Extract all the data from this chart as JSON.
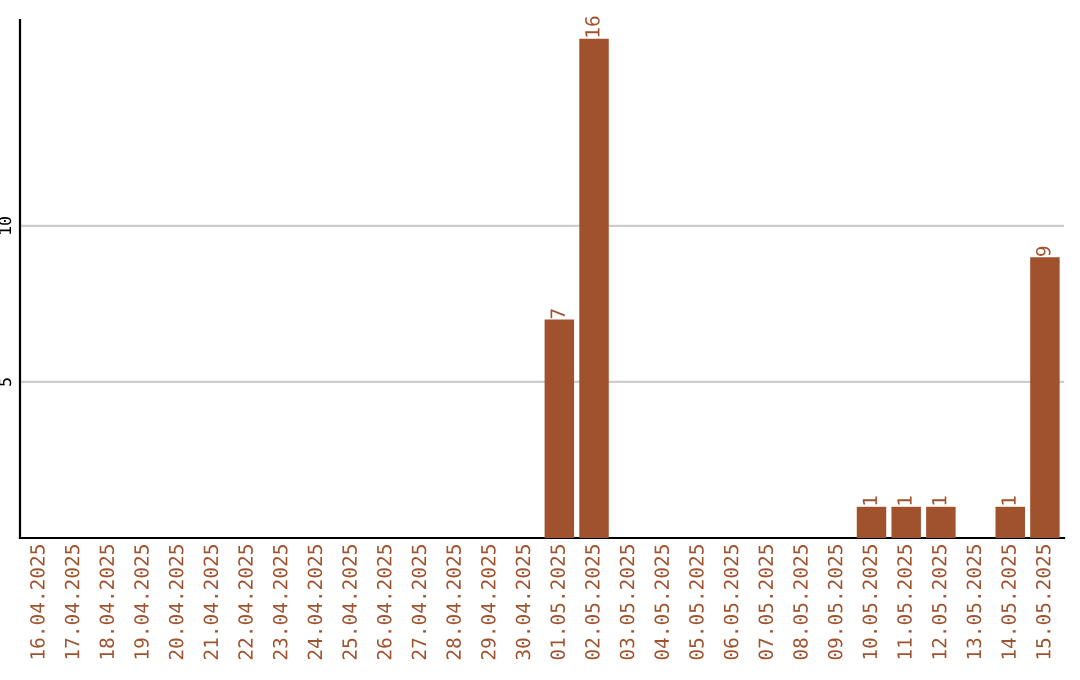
{
  "chart_data": {
    "type": "bar",
    "categories": [
      "16.04.2025",
      "17.04.2025",
      "18.04.2025",
      "19.04.2025",
      "20.04.2025",
      "21.04.2025",
      "22.04.2025",
      "23.04.2025",
      "24.04.2025",
      "25.04.2025",
      "26.04.2025",
      "27.04.2025",
      "28.04.2025",
      "29.04.2025",
      "30.04.2025",
      "01.05.2025",
      "02.05.2025",
      "03.05.2025",
      "04.05.2025",
      "05.05.2025",
      "06.05.2025",
      "07.05.2025",
      "08.05.2025",
      "09.05.2025",
      "10.05.2025",
      "11.05.2025",
      "12.05.2025",
      "13.05.2025",
      "14.05.2025",
      "15.05.2025"
    ],
    "values": [
      0,
      0,
      0,
      0,
      0,
      0,
      0,
      0,
      0,
      0,
      0,
      0,
      0,
      0,
      0,
      7,
      16,
      0,
      0,
      0,
      0,
      0,
      0,
      0,
      1,
      1,
      1,
      0,
      1,
      9
    ],
    "value_labels": [
      null,
      null,
      null,
      null,
      null,
      null,
      null,
      null,
      null,
      null,
      null,
      null,
      null,
      null,
      null,
      "7",
      "16",
      null,
      null,
      null,
      null,
      null,
      null,
      null,
      "1",
      "1",
      "1",
      null,
      "1",
      "9"
    ],
    "color": "#a0522d",
    "ylim": [
      0,
      16.6
    ],
    "yticks": [
      5,
      10
    ],
    "grid": "y",
    "legend": false
  }
}
